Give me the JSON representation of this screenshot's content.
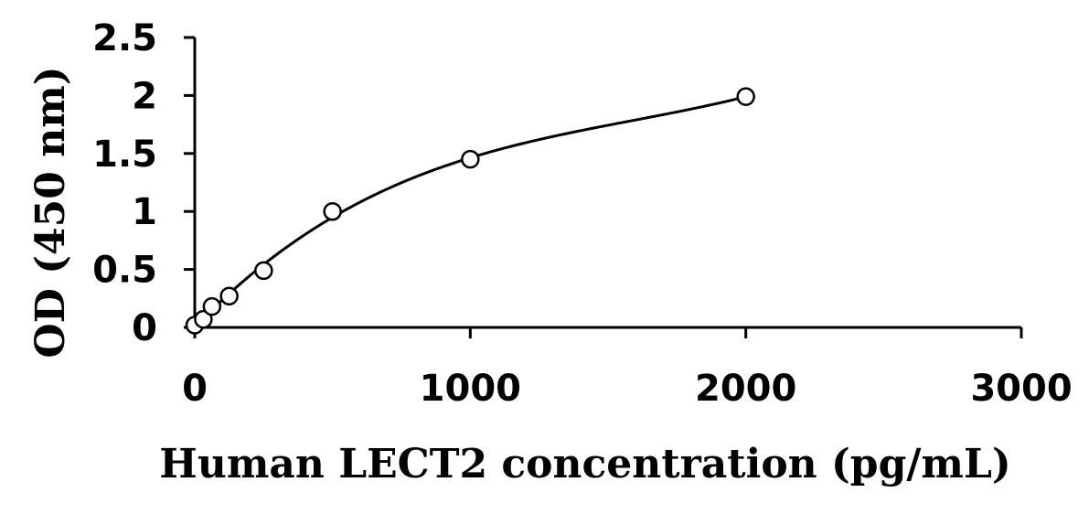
{
  "chart_data": {
    "type": "scatter",
    "xlabel": "Human LECT2 concentration (pg/mL)",
    "ylabel": "OD (450 nm)",
    "xlim": [
      0,
      3000
    ],
    "ylim": [
      0,
      2.5
    ],
    "x_ticks": [
      0,
      1000,
      2000,
      3000
    ],
    "x_tick_labels": [
      "0",
      "1000",
      "2000",
      "3000"
    ],
    "y_ticks": [
      0,
      0.5,
      1,
      1.5,
      2,
      2.5
    ],
    "y_tick_labels": [
      "0",
      "0.5",
      "1",
      "1.5",
      "2",
      "2.5"
    ],
    "grid": false,
    "series": [
      {
        "marker": "open-circle",
        "fit": "polynomial-curve",
        "x": [
          0,
          31.25,
          62.5,
          125,
          250,
          500,
          1000,
          2000
        ],
        "y": [
          0.02,
          0.07,
          0.18,
          0.27,
          0.49,
          1.0,
          1.45,
          1.99
        ]
      }
    ]
  }
}
